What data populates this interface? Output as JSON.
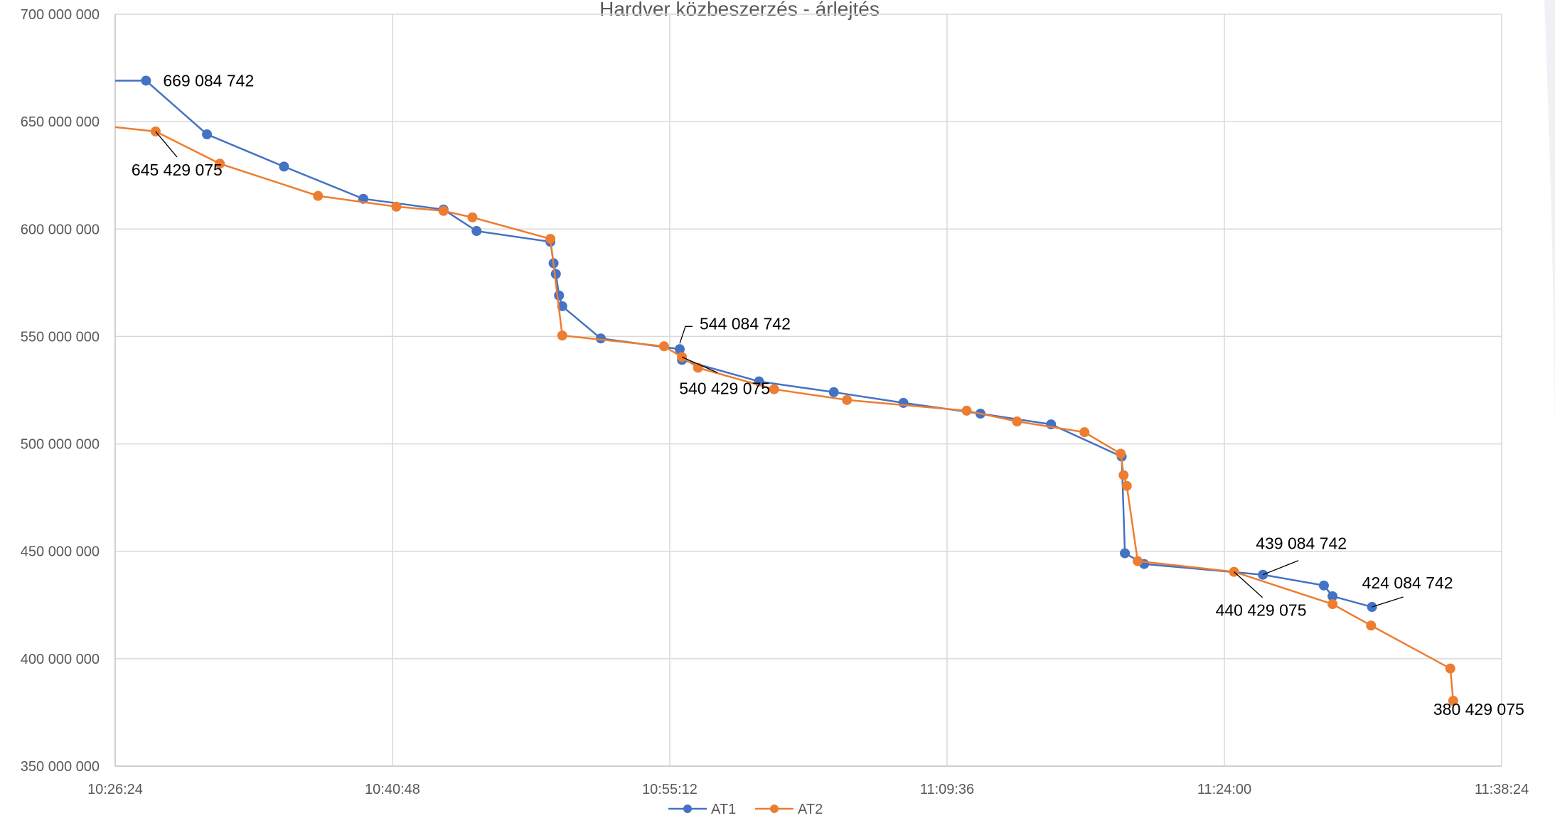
{
  "chart_data": {
    "type": "line",
    "title": "Hardver közbeszerzés - árlejtés",
    "xlabel": "",
    "ylabel": "",
    "x_range": [
      "10:26:24",
      "11:38:24"
    ],
    "ylim": [
      350000000,
      700000000
    ],
    "y_ticks": [
      350000000,
      400000000,
      450000000,
      500000000,
      550000000,
      600000000,
      650000000,
      700000000
    ],
    "y_tick_labels": [
      "350 000 000",
      "400 000 000",
      "450 000 000",
      "500 000 000",
      "550 000 000",
      "600 000 000",
      "650 000 000",
      "700 000 000"
    ],
    "x_tick_labels": [
      "10:26:24",
      "10:40:48",
      "10:55:12",
      "11:09:36",
      "11:24:00",
      "11:38:24"
    ],
    "grid": true,
    "legend_position": "bottom",
    "series": [
      {
        "name": "AT1",
        "color": "#4472C4",
        "points": [
          [
            "10:26:24",
            669084742
          ],
          [
            "10:28:00",
            669084742
          ],
          [
            "10:31:10",
            644084742
          ],
          [
            "10:35:10",
            629084742
          ],
          [
            "10:39:17",
            614084742
          ],
          [
            "10:43:27",
            609084742
          ],
          [
            "10:45:10",
            599084742
          ],
          [
            "10:49:00",
            594084742
          ],
          [
            "10:49:10",
            584084742
          ],
          [
            "10:49:17",
            579084742
          ],
          [
            "10:49:27",
            569084742
          ],
          [
            "10:49:37",
            564084742
          ],
          [
            "10:51:37",
            549084742
          ],
          [
            "10:55:43",
            544084742
          ],
          [
            "10:55:50",
            539084742
          ],
          [
            "10:59:50",
            529084742
          ],
          [
            "11:03:43",
            524084742
          ],
          [
            "11:07:20",
            519084742
          ],
          [
            "11:11:20",
            514084742
          ],
          [
            "11:15:00",
            509084742
          ],
          [
            "11:18:40",
            494084742
          ],
          [
            "11:18:50",
            449084742
          ],
          [
            "11:19:50",
            444084742
          ],
          [
            "11:26:00",
            439084742
          ],
          [
            "11:29:10",
            434084742
          ],
          [
            "11:29:37",
            429084742
          ],
          [
            "11:31:40",
            424084742
          ]
        ]
      },
      {
        "name": "AT2",
        "color": "#ED7D31",
        "points": [
          [
            "10:26:24",
            647429075
          ],
          [
            "10:28:30",
            645429075
          ],
          [
            "10:31:50",
            630429075
          ],
          [
            "10:36:56",
            615429075
          ],
          [
            "10:41:00",
            610429075
          ],
          [
            "10:43:27",
            608429075
          ],
          [
            "10:44:57",
            605429075
          ],
          [
            "10:49:00",
            595429075
          ],
          [
            "10:49:37",
            550429075
          ],
          [
            "10:54:54",
            545429075
          ],
          [
            "10:55:50",
            540429075
          ],
          [
            "10:56:40",
            535429075
          ],
          [
            "11:00:37",
            525429075
          ],
          [
            "11:04:24",
            520429075
          ],
          [
            "11:10:37",
            515429075
          ],
          [
            "11:13:14",
            510429075
          ],
          [
            "11:16:44",
            505429075
          ],
          [
            "11:18:37",
            495429075
          ],
          [
            "11:18:46",
            485429075
          ],
          [
            "11:18:56",
            480429075
          ],
          [
            "11:19:30",
            445429075
          ],
          [
            "11:24:30",
            440429075
          ],
          [
            "11:29:37",
            425429075
          ],
          [
            "11:31:37",
            415429075
          ],
          [
            "11:35:44",
            395429075
          ],
          [
            "11:35:53",
            380429075
          ]
        ]
      }
    ],
    "data_labels": [
      {
        "series": "AT1",
        "time": "10:28:00",
        "value": 669084742,
        "text": "669 084 742"
      },
      {
        "series": "AT2",
        "time": "10:28:30",
        "value": 645429075,
        "text": "645 429 075"
      },
      {
        "series": "AT1",
        "time": "10:55:43",
        "value": 544084742,
        "text": "544 084 742"
      },
      {
        "series": "AT2",
        "time": "10:55:50",
        "value": 540429075,
        "text": "540 429 075"
      },
      {
        "series": "AT1",
        "time": "11:26:00",
        "value": 439084742,
        "text": "439 084 742"
      },
      {
        "series": "AT2",
        "time": "11:24:30",
        "value": 440429075,
        "text": "440 429 075"
      },
      {
        "series": "AT1",
        "time": "11:31:40",
        "value": 424084742,
        "text": "424 084 742"
      },
      {
        "series": "AT2",
        "time": "11:35:53",
        "value": 380429075,
        "text": "380 429 075"
      }
    ]
  }
}
